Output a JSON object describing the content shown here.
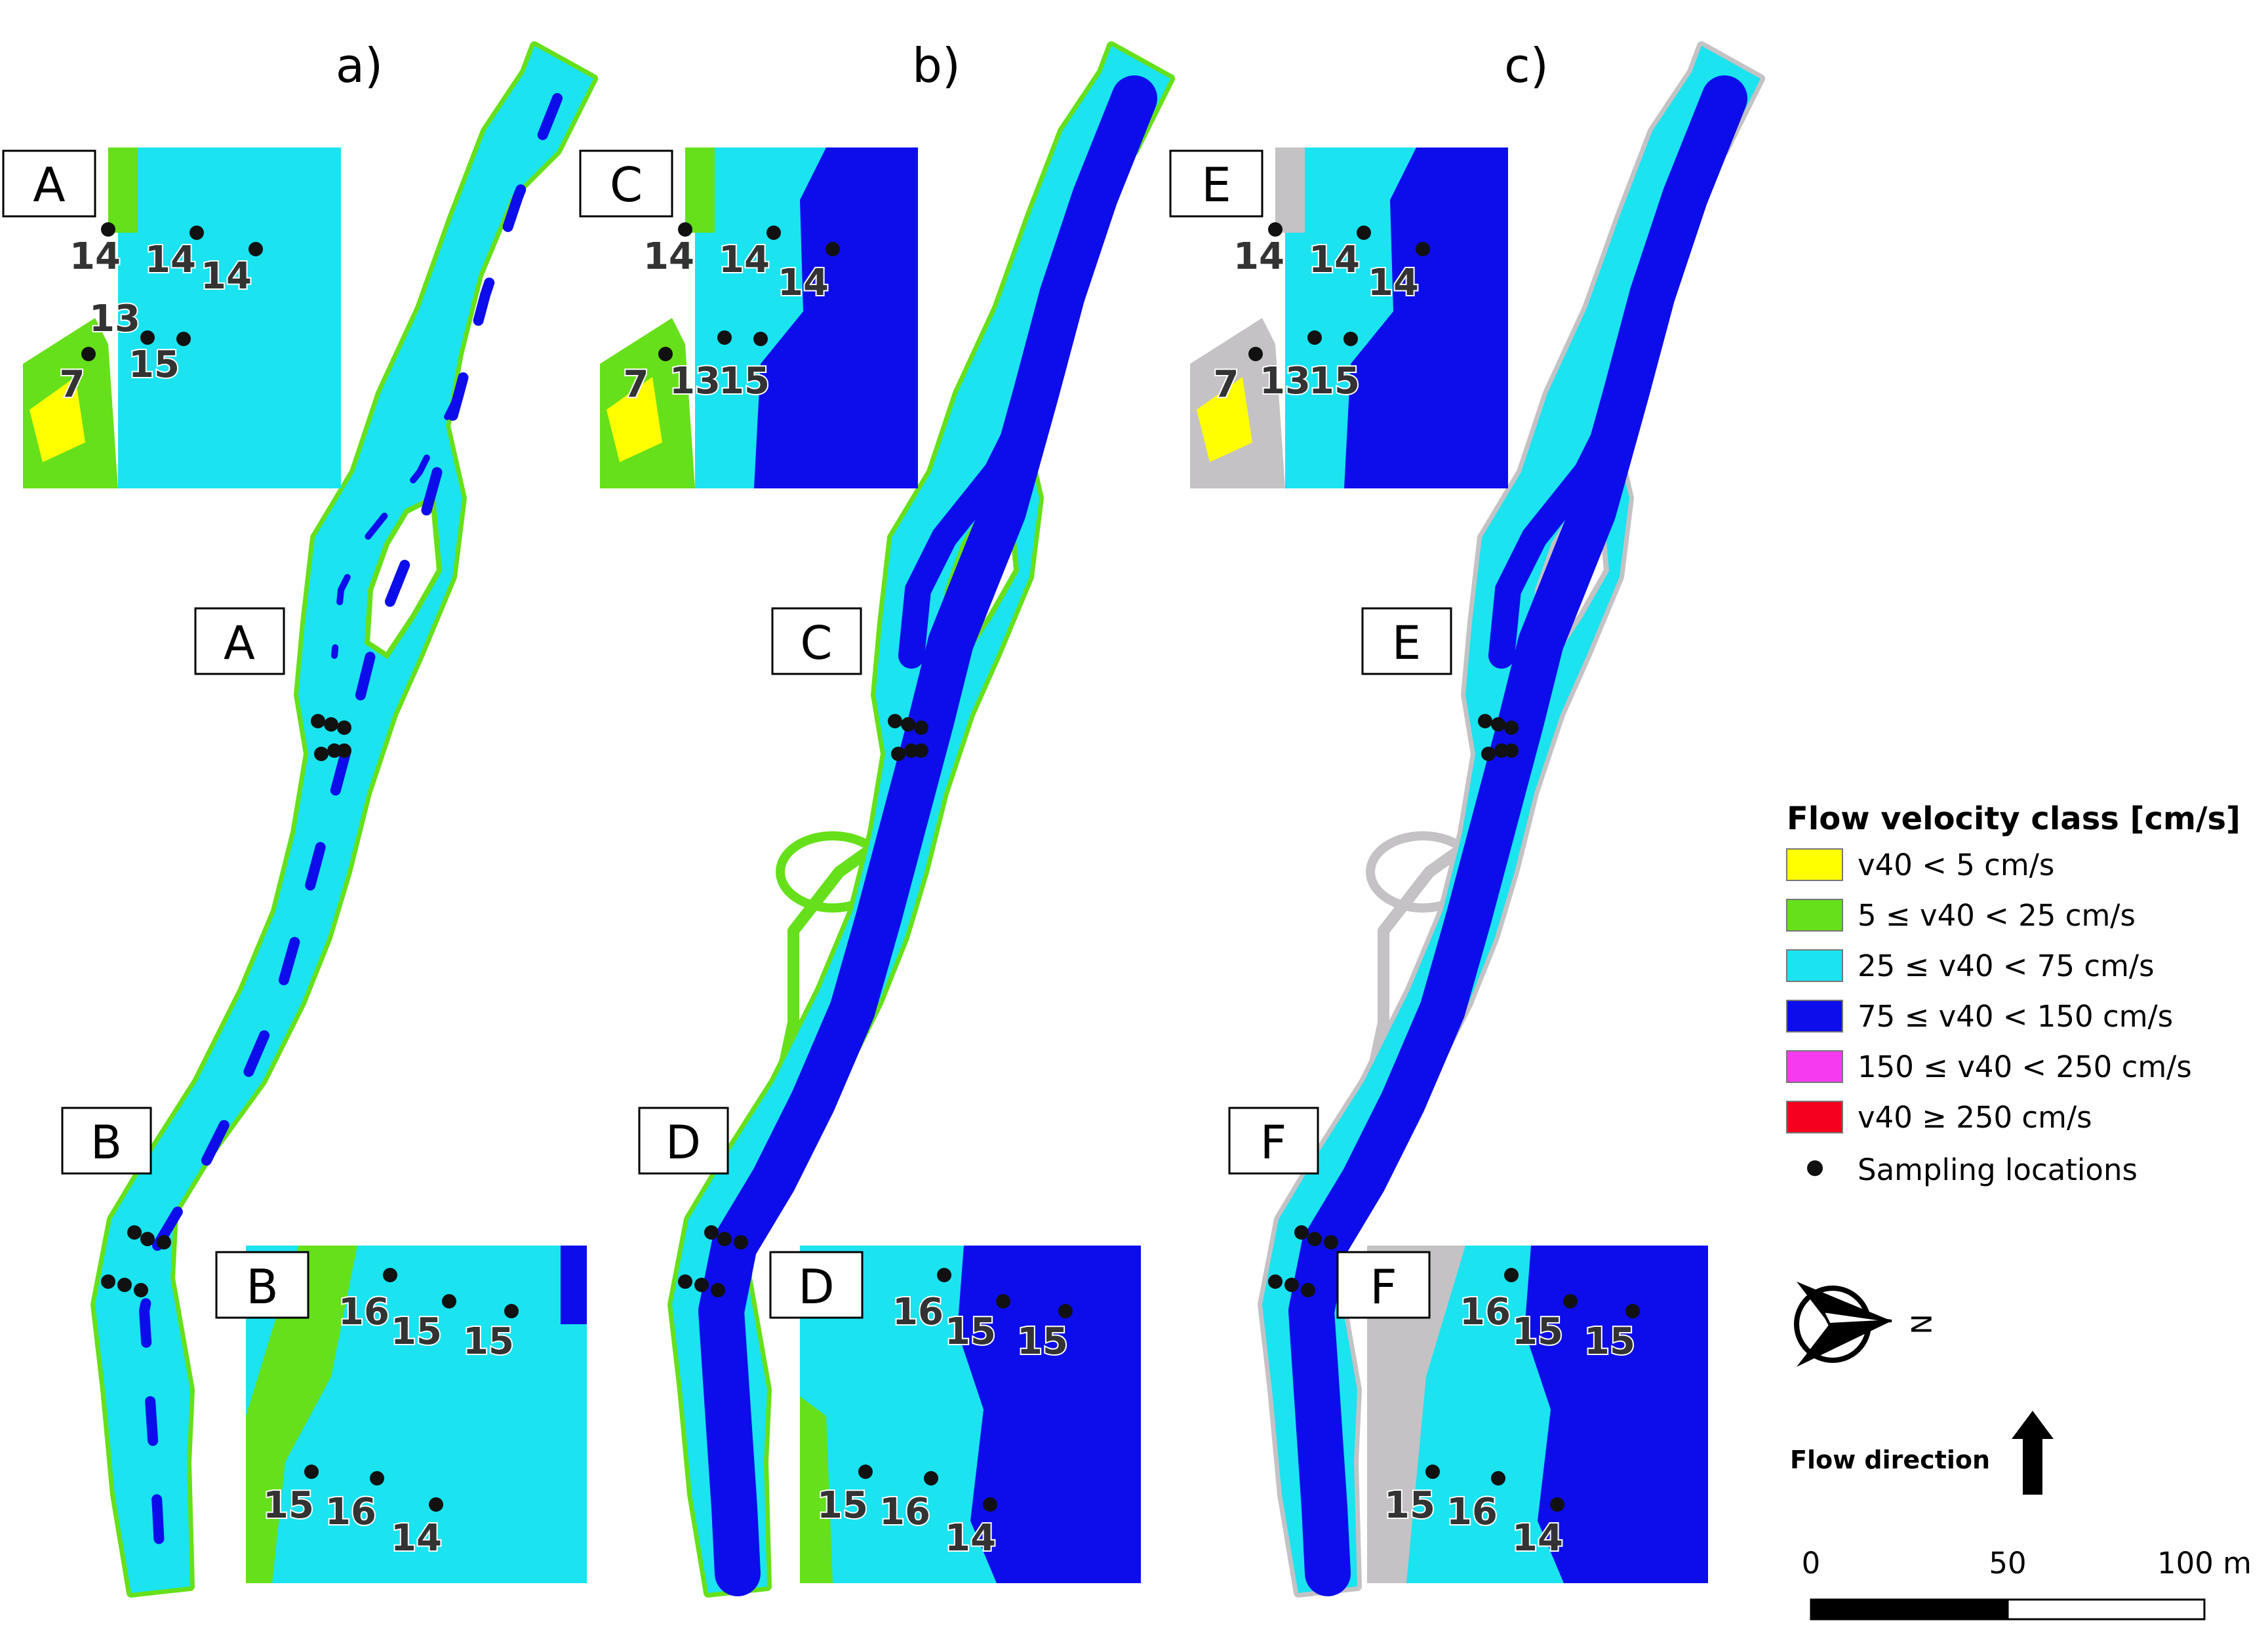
{
  "colors": {
    "yellow": "#FFFF00",
    "green": "#66E01A",
    "cyan": "#1BE3F0",
    "blue": "#0D0DEB",
    "magenta": "#F53AF0",
    "red": "#F5001E",
    "grey": "#C4C2C4",
    "point": "#111111"
  },
  "panels": [
    {
      "id": "a",
      "title": "a)",
      "bank": "green",
      "insets": [
        "A",
        "B"
      ]
    },
    {
      "id": "b",
      "title": "b)",
      "bank": "green",
      "insets": [
        "C",
        "D"
      ]
    },
    {
      "id": "c",
      "title": "c)",
      "bank": "grey",
      "insets": [
        "E",
        "F"
      ]
    }
  ],
  "upper_inset_labels": [
    "14",
    "14",
    "14",
    "13",
    "7",
    "15"
  ],
  "upper_inset_labels_b": [
    "14",
    "14",
    "14",
    "7",
    "13",
    "15"
  ],
  "lower_inset_labels": [
    "16",
    "15",
    "15",
    "15",
    "16",
    "14"
  ],
  "legend": {
    "title": "Flow velocity class [cm/s]",
    "items": [
      {
        "label": "v40 < 5 cm/s",
        "color": "yellow"
      },
      {
        "label": "5 ≤ v40 < 25 cm/s",
        "color": "green"
      },
      {
        "label": "25 ≤ v40 < 75 cm/s",
        "color": "cyan"
      },
      {
        "label": "75 ≤ v40 < 150 cm/s",
        "color": "blue"
      },
      {
        "label": "150 ≤ v40 < 250 cm/s",
        "color": "magenta"
      },
      {
        "label": "v40 ≥ 250 cm/s",
        "color": "red"
      }
    ],
    "points_label": "Sampling locations"
  },
  "north": {
    "letter": "N"
  },
  "flow_direction": "Flow direction",
  "scale_bar": {
    "ticks": [
      "0",
      "50",
      "100 m"
    ]
  }
}
